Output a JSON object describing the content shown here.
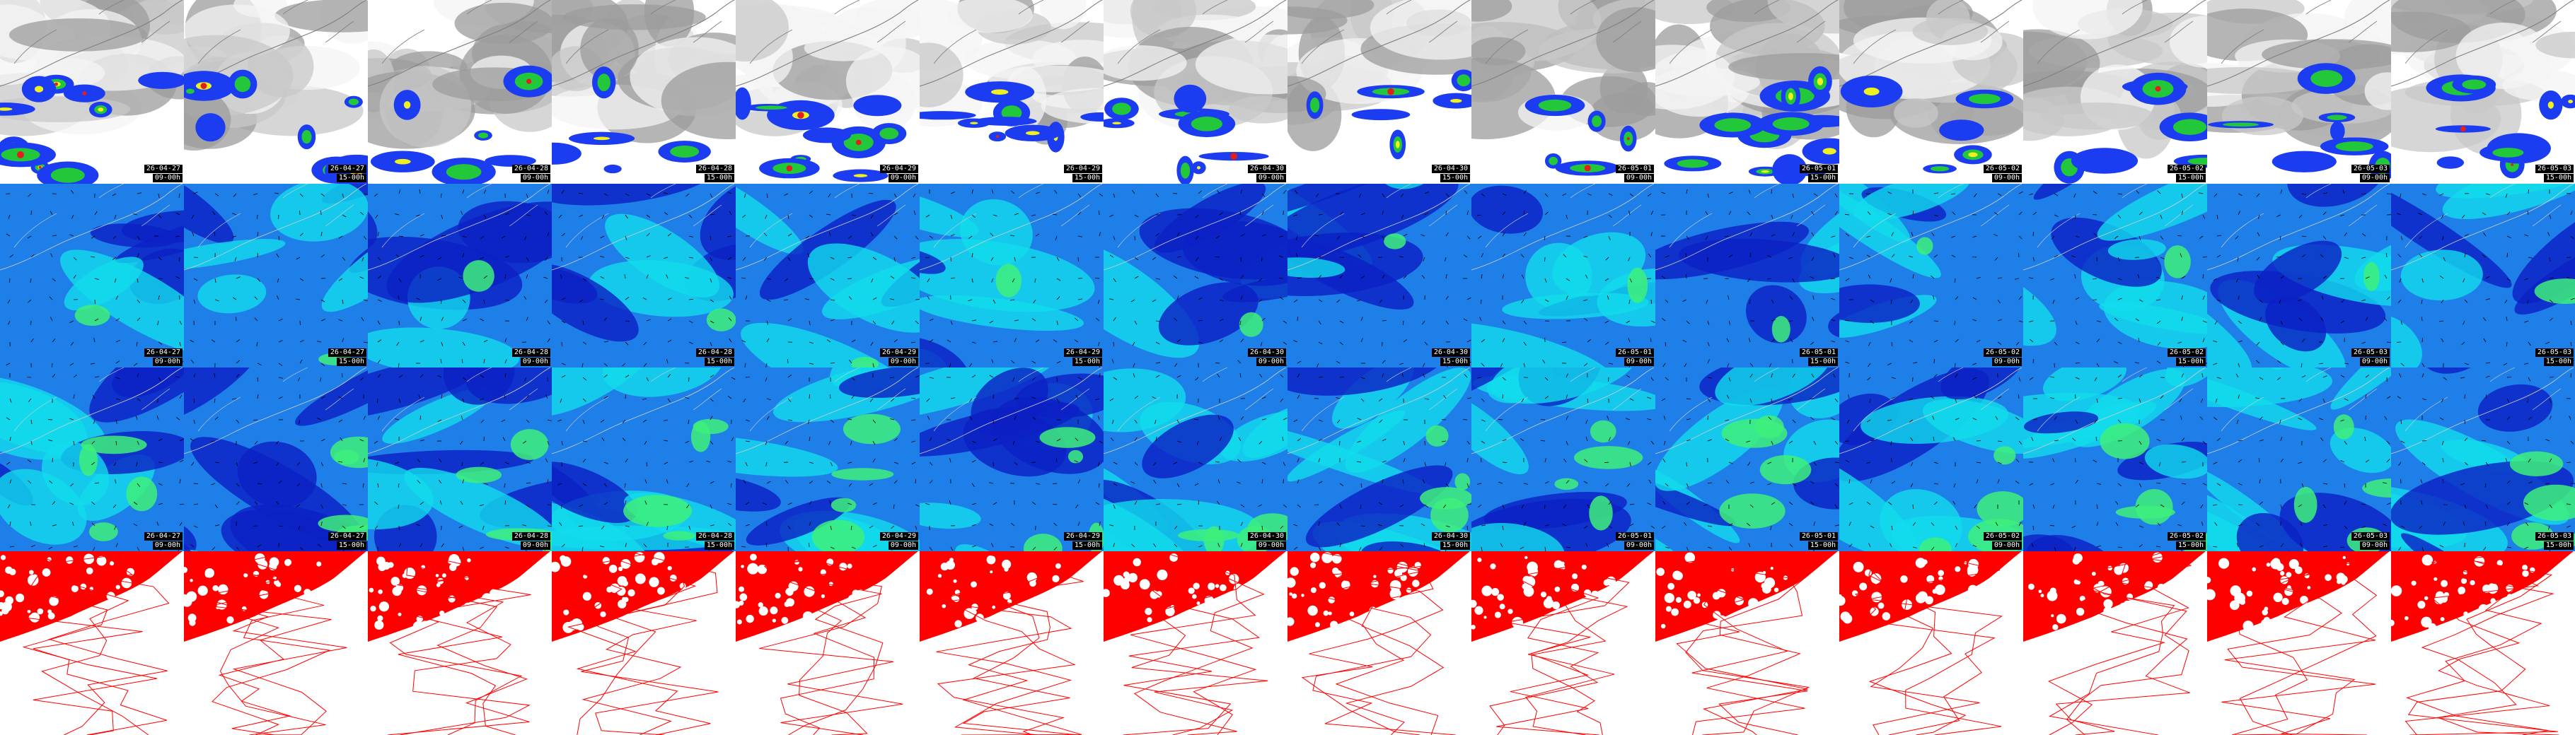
{
  "title": "",
  "rows": [
    {
      "id": "precipitation",
      "style": "precip"
    },
    {
      "id": "wind-level-1",
      "style": "wind"
    },
    {
      "id": "wind-level-2",
      "style": "wind"
    },
    {
      "id": "red-contours",
      "style": "contour"
    }
  ],
  "rows_with_labels": [
    "precipitation",
    "wind-level-1",
    "wind-level-2"
  ],
  "panels": [
    {
      "date": "26-04-27",
      "run": "09-00h"
    },
    {
      "date": "26-04-27",
      "run": "15-00h"
    },
    {
      "date": "26-04-28",
      "run": "09-00h"
    },
    {
      "date": "26-04-28",
      "run": "15-00h"
    },
    {
      "date": "26-04-29",
      "run": "09-00h"
    },
    {
      "date": "26-04-29",
      "run": "15-00h"
    },
    {
      "date": "26-04-30",
      "run": "09-00h"
    },
    {
      "date": "26-04-30",
      "run": "15-00h"
    },
    {
      "date": "26-05-01",
      "run": "09-00h"
    },
    {
      "date": "26-05-01",
      "run": "15-00h"
    },
    {
      "date": "26-05-02",
      "run": "09-00h"
    },
    {
      "date": "26-05-02",
      "run": "15-00h"
    },
    {
      "date": "26-05-03",
      "run": "09-00h"
    },
    {
      "date": "26-05-03",
      "run": "15-00h"
    }
  ],
  "colors": {
    "cloud_light": "#f4f4f4",
    "cloud_mid": "#c8c8c8",
    "cloud_dark": "#9c9c9c",
    "precip_blue": "#1b3cf0",
    "precip_green": "#22c83a",
    "precip_yellow": "#f0f020",
    "precip_red": "#e0201c",
    "wind_deep": "#0b1fc4",
    "wind_mid": "#1f7fe8",
    "wind_cyan": "#11dcec",
    "wind_green": "#3ef07a",
    "contour_red": "#ff0000",
    "coast_gray": "#808080"
  }
}
